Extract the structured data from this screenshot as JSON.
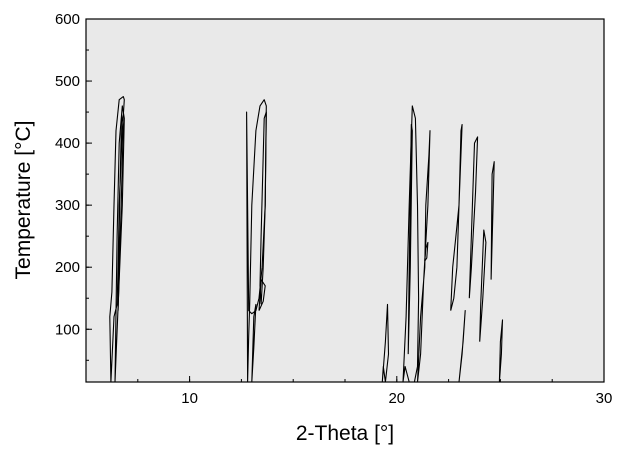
{
  "chart_data": {
    "type": "contour",
    "xlabel": "2-Theta [°]",
    "ylabel": "Temperature [°C]",
    "xlim": [
      5,
      30
    ],
    "ylim": [
      15,
      600
    ],
    "x_ticks": [
      10,
      20,
      30
    ],
    "y_ticks": [
      100,
      200,
      300,
      400,
      500,
      600
    ],
    "x_minor_step": 2.5,
    "y_minor_step": 50,
    "grid": false,
    "colors": {
      "plot_background": "#e9e9e9",
      "contour_line": "#000000",
      "axes": "#000000"
    },
    "contours": [
      {
        "x": [
          6.2,
          6.35,
          6.5,
          6.55,
          6.6,
          6.75,
          6.85,
          6.8,
          6.6,
          6.45,
          6.35,
          6.25,
          6.15,
          6.2
        ],
        "y": [
          15,
          120,
          140,
          200,
          300,
          420,
          470,
          475,
          470,
          420,
          300,
          160,
          120,
          15
        ]
      },
      {
        "x": [
          6.4,
          6.6,
          6.75,
          6.85,
          6.75,
          6.6,
          6.5,
          6.4
        ],
        "y": [
          15,
          180,
          300,
          440,
          460,
          400,
          250,
          15
        ]
      },
      {
        "x": [
          6.55,
          6.7,
          6.8,
          6.72,
          6.62,
          6.55
        ],
        "y": [
          130,
          300,
          430,
          445,
          300,
          130
        ]
      },
      {
        "x": [
          12.8,
          12.85,
          12.9,
          13.0,
          13.2,
          13.4,
          13.6,
          13.7,
          13.65,
          13.5,
          13.35,
          13.2,
          13.0,
          12.85,
          12.8,
          12.75,
          12.8
        ],
        "y": [
          15,
          90,
          140,
          300,
          420,
          460,
          470,
          460,
          300,
          200,
          150,
          130,
          125,
          130,
          300,
          450,
          15
        ]
      },
      {
        "x": [
          13.0,
          13.1,
          13.2,
          13.1,
          13.0
        ],
        "y": [
          15,
          70,
          140,
          120,
          15
        ]
      },
      {
        "x": [
          13.45,
          13.55,
          13.65,
          13.7,
          13.6,
          13.45,
          13.4,
          13.45
        ],
        "y": [
          140,
          200,
          300,
          450,
          440,
          250,
          170,
          140
        ]
      },
      {
        "x": [
          13.35,
          13.55,
          13.65,
          13.45,
          13.35
        ],
        "y": [
          130,
          145,
          170,
          180,
          130
        ]
      },
      {
        "x": [
          19.3,
          19.45,
          19.55,
          19.6,
          19.45,
          19.35,
          19.3
        ],
        "y": [
          15,
          80,
          140,
          60,
          15,
          40,
          15
        ]
      },
      {
        "x": [
          20.3,
          20.45,
          20.6,
          20.75,
          20.9,
          21.0,
          21.05,
          21.0,
          20.85,
          20.6,
          20.4,
          20.3
        ],
        "y": [
          15,
          120,
          300,
          460,
          440,
          300,
          150,
          40,
          15,
          15,
          40,
          15
        ]
      },
      {
        "x": [
          20.55,
          20.65,
          20.75,
          20.7,
          20.6,
          20.55
        ],
        "y": [
          60,
          200,
          420,
          430,
          200,
          60
        ]
      },
      {
        "x": [
          21.0,
          21.15,
          21.35,
          21.4,
          21.55,
          21.6,
          21.5,
          21.3,
          21.15,
          21.0
        ],
        "y": [
          15,
          120,
          200,
          300,
          380,
          420,
          300,
          180,
          60,
          15
        ]
      },
      {
        "x": [
          21.35,
          21.45,
          21.5,
          21.4,
          21.35
        ],
        "y": [
          210,
          215,
          240,
          230,
          210
        ]
      },
      {
        "x": [
          22.6,
          22.75,
          22.9,
          23.0,
          23.15,
          23.1,
          23.0,
          22.85,
          22.7,
          22.6
        ],
        "y": [
          130,
          150,
          200,
          300,
          430,
          420,
          300,
          250,
          200,
          130
        ]
      },
      {
        "x": [
          23.0,
          23.2,
          23.3,
          23.15,
          23.0
        ],
        "y": [
          15,
          80,
          130,
          60,
          15
        ]
      },
      {
        "x": [
          23.5,
          23.65,
          23.75,
          23.9,
          23.8,
          23.6,
          23.5
        ],
        "y": [
          150,
          300,
          400,
          410,
          320,
          200,
          150
        ]
      },
      {
        "x": [
          24.0,
          24.15,
          24.3,
          24.2,
          24.05,
          24.0
        ],
        "y": [
          80,
          150,
          240,
          260,
          140,
          80
        ]
      },
      {
        "x": [
          24.55,
          24.65,
          24.7,
          24.6,
          24.55
        ],
        "y": [
          180,
          300,
          370,
          350,
          180
        ]
      },
      {
        "x": [
          24.95,
          25.05,
          25.1,
          25.0,
          24.95
        ],
        "y": [
          15,
          60,
          115,
          80,
          15
        ]
      }
    ]
  }
}
